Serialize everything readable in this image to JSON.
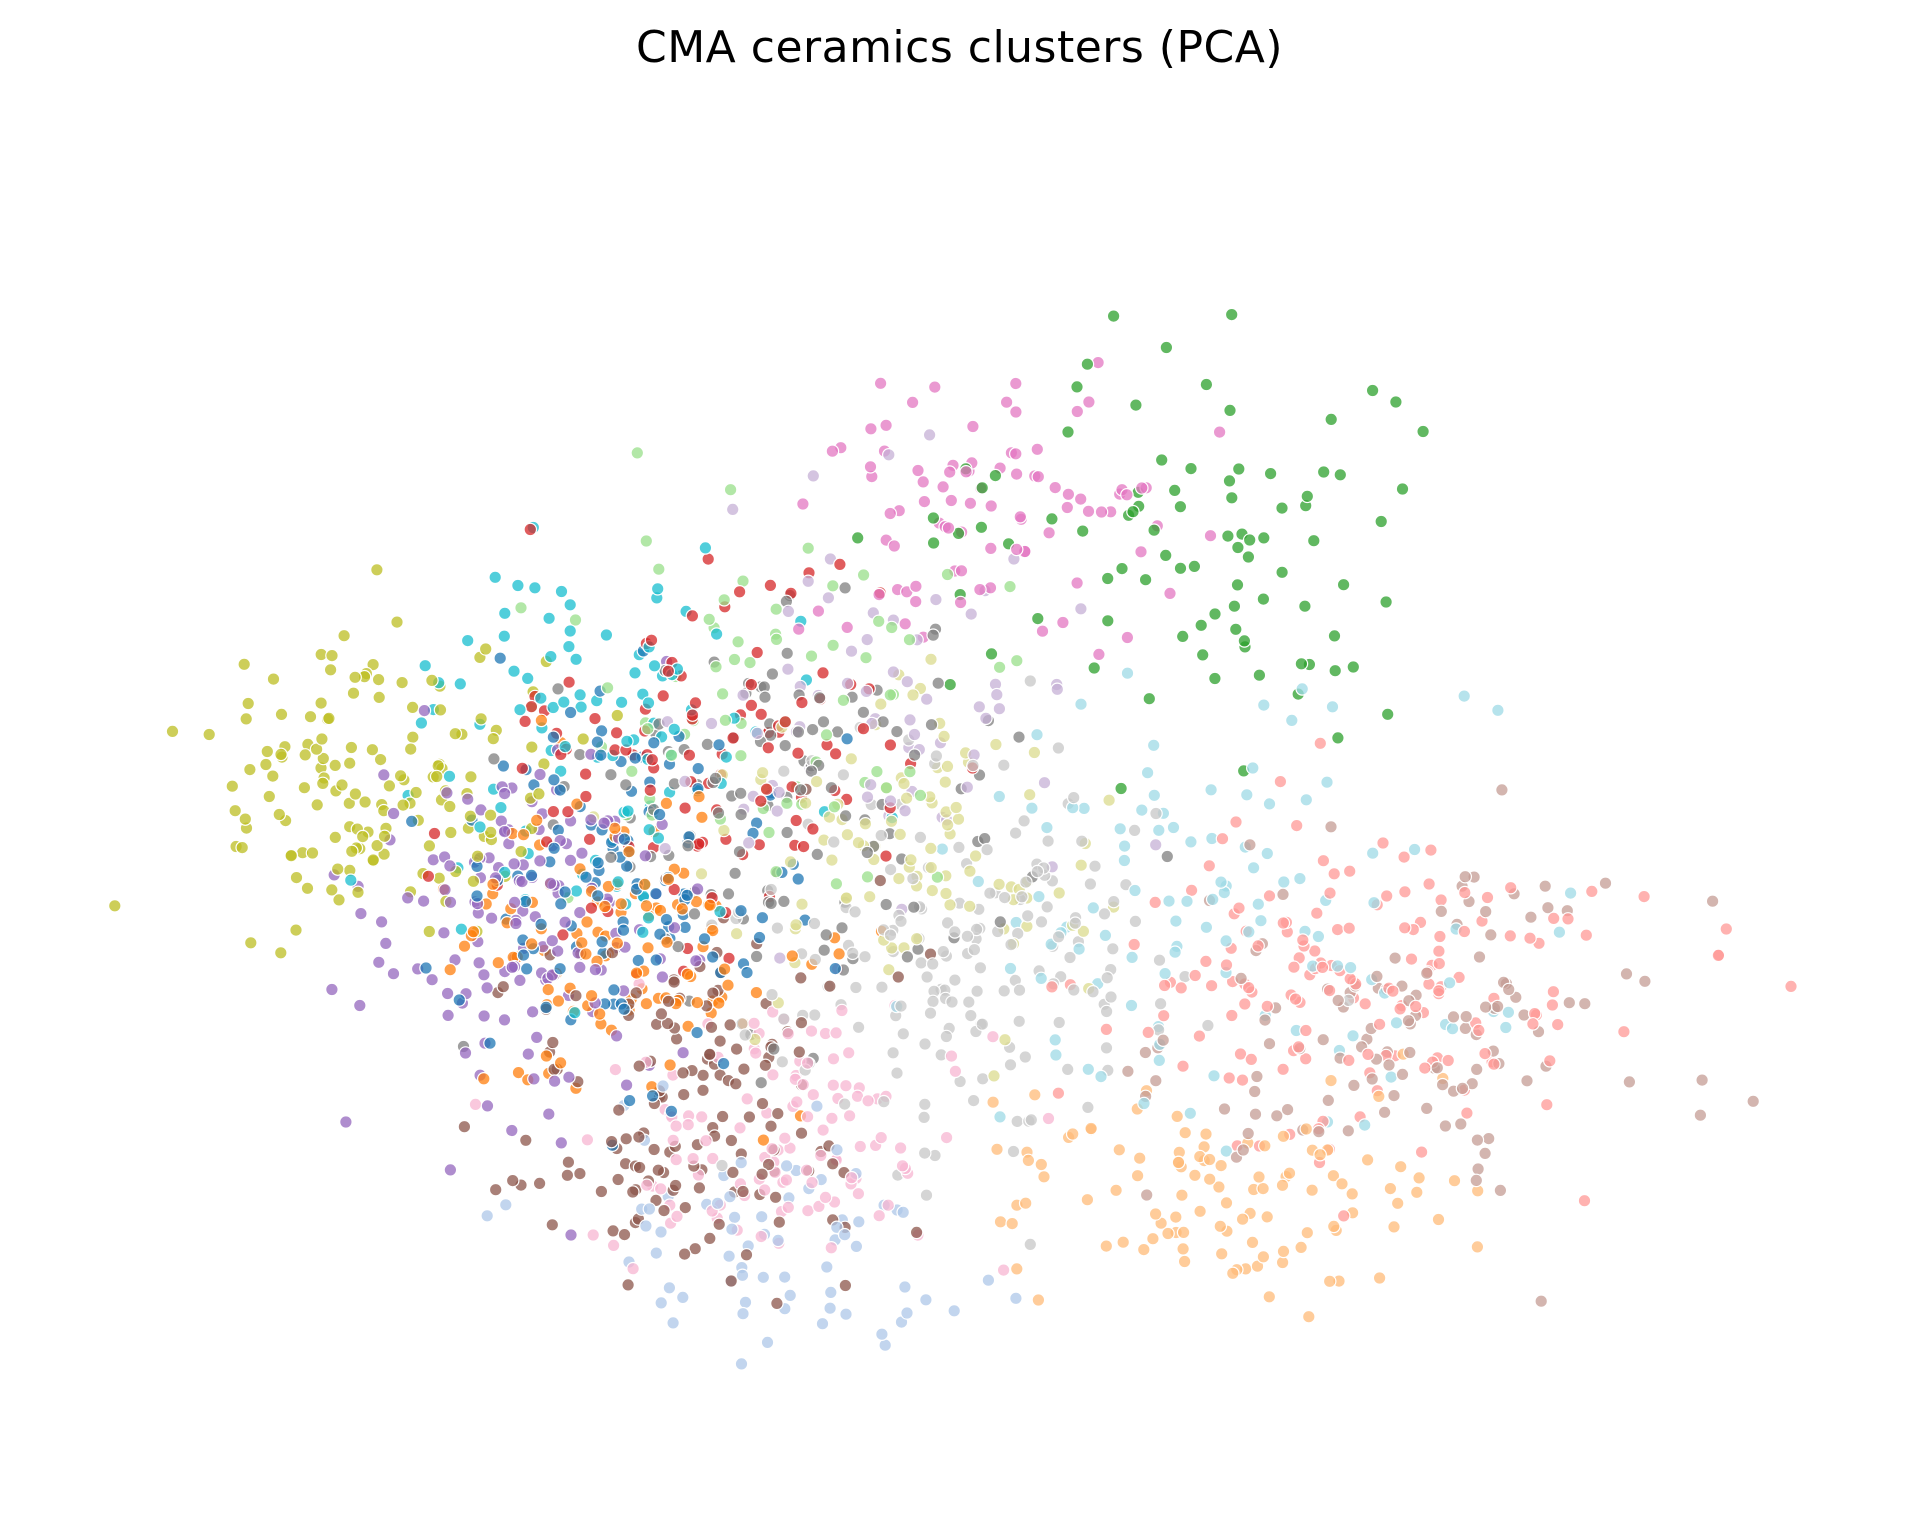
{
  "chart_data": {
    "type": "scatter",
    "title": "CMA ceramics clusters (PCA)",
    "axes_visible": false,
    "grid": false,
    "legend": "none",
    "point_style": {
      "alpha": 0.75,
      "edgecolor": "#ffffff"
    },
    "xlim": [
      -4.5,
      4.9
    ],
    "ylim": [
      -3.4,
      3.6
    ],
    "clusters": [
      {
        "id": 0,
        "color": "#1f77b4",
        "centroid": [
          -1.6,
          -0.3
        ],
        "spread": [
          0.75,
          0.85
        ],
        "count": 120
      },
      {
        "id": 1,
        "color": "#aec7e8",
        "centroid": [
          -0.9,
          -2.2
        ],
        "spread": [
          1.0,
          0.5
        ],
        "count": 70
      },
      {
        "id": 2,
        "color": "#ff7f0e",
        "centroid": [
          -1.7,
          -0.6
        ],
        "spread": [
          0.75,
          0.65
        ],
        "count": 120
      },
      {
        "id": 3,
        "color": "#ffbb78",
        "centroid": [
          1.6,
          -1.9
        ],
        "spread": [
          1.0,
          0.5
        ],
        "count": 110
      },
      {
        "id": 4,
        "color": "#2ca02c",
        "centroid": [
          1.4,
          1.5
        ],
        "spread": [
          1.0,
          0.85
        ],
        "count": 90
      },
      {
        "id": 5,
        "color": "#98df8a",
        "centroid": [
          -0.8,
          0.7
        ],
        "spread": [
          0.9,
          0.8
        ],
        "count": 70
      },
      {
        "id": 6,
        "color": "#d62728",
        "centroid": [
          -1.2,
          0.3
        ],
        "spread": [
          1.0,
          0.75
        ],
        "count": 110
      },
      {
        "id": 7,
        "color": "#ff9896",
        "centroid": [
          2.3,
          -0.8
        ],
        "spread": [
          1.2,
          0.65
        ],
        "count": 160
      },
      {
        "id": 8,
        "color": "#9467bd",
        "centroid": [
          -2.2,
          -0.5
        ],
        "spread": [
          0.75,
          0.85
        ],
        "count": 150
      },
      {
        "id": 9,
        "color": "#c5b0d5",
        "centroid": [
          -0.4,
          0.6
        ],
        "spread": [
          1.0,
          0.9
        ],
        "count": 70
      },
      {
        "id": 10,
        "color": "#8c564b",
        "centroid": [
          -1.3,
          -1.4
        ],
        "spread": [
          0.85,
          0.8
        ],
        "count": 150
      },
      {
        "id": 11,
        "color": "#c49c94",
        "centroid": [
          2.6,
          -1.1
        ],
        "spread": [
          1.1,
          0.7
        ],
        "count": 120
      },
      {
        "id": 12,
        "color": "#e377c2",
        "centroid": [
          0.3,
          1.7
        ],
        "spread": [
          0.9,
          0.65
        ],
        "count": 90
      },
      {
        "id": 13,
        "color": "#f7b6d2",
        "centroid": [
          -0.8,
          -1.6
        ],
        "spread": [
          0.75,
          0.6
        ],
        "count": 120
      },
      {
        "id": 14,
        "color": "#7f7f7f",
        "centroid": [
          -0.8,
          0.2
        ],
        "spread": [
          1.1,
          1.0
        ],
        "count": 120
      },
      {
        "id": 15,
        "color": "#c7c7c7",
        "centroid": [
          0.2,
          -0.7
        ],
        "spread": [
          1.0,
          0.8
        ],
        "count": 180
      },
      {
        "id": 16,
        "color": "#bcbd22",
        "centroid": [
          -3.0,
          0.2
        ],
        "spread": [
          0.75,
          0.6
        ],
        "count": 150
      },
      {
        "id": 17,
        "color": "#dbdb8d",
        "centroid": [
          -0.1,
          -0.1
        ],
        "spread": [
          0.9,
          0.7
        ],
        "count": 100
      },
      {
        "id": 18,
        "color": "#17becf",
        "centroid": [
          -1.9,
          0.5
        ],
        "spread": [
          0.85,
          0.85
        ],
        "count": 100
      },
      {
        "id": 19,
        "color": "#9edae5",
        "centroid": [
          1.6,
          -0.4
        ],
        "spread": [
          1.3,
          1.0
        ],
        "count": 110
      }
    ]
  }
}
